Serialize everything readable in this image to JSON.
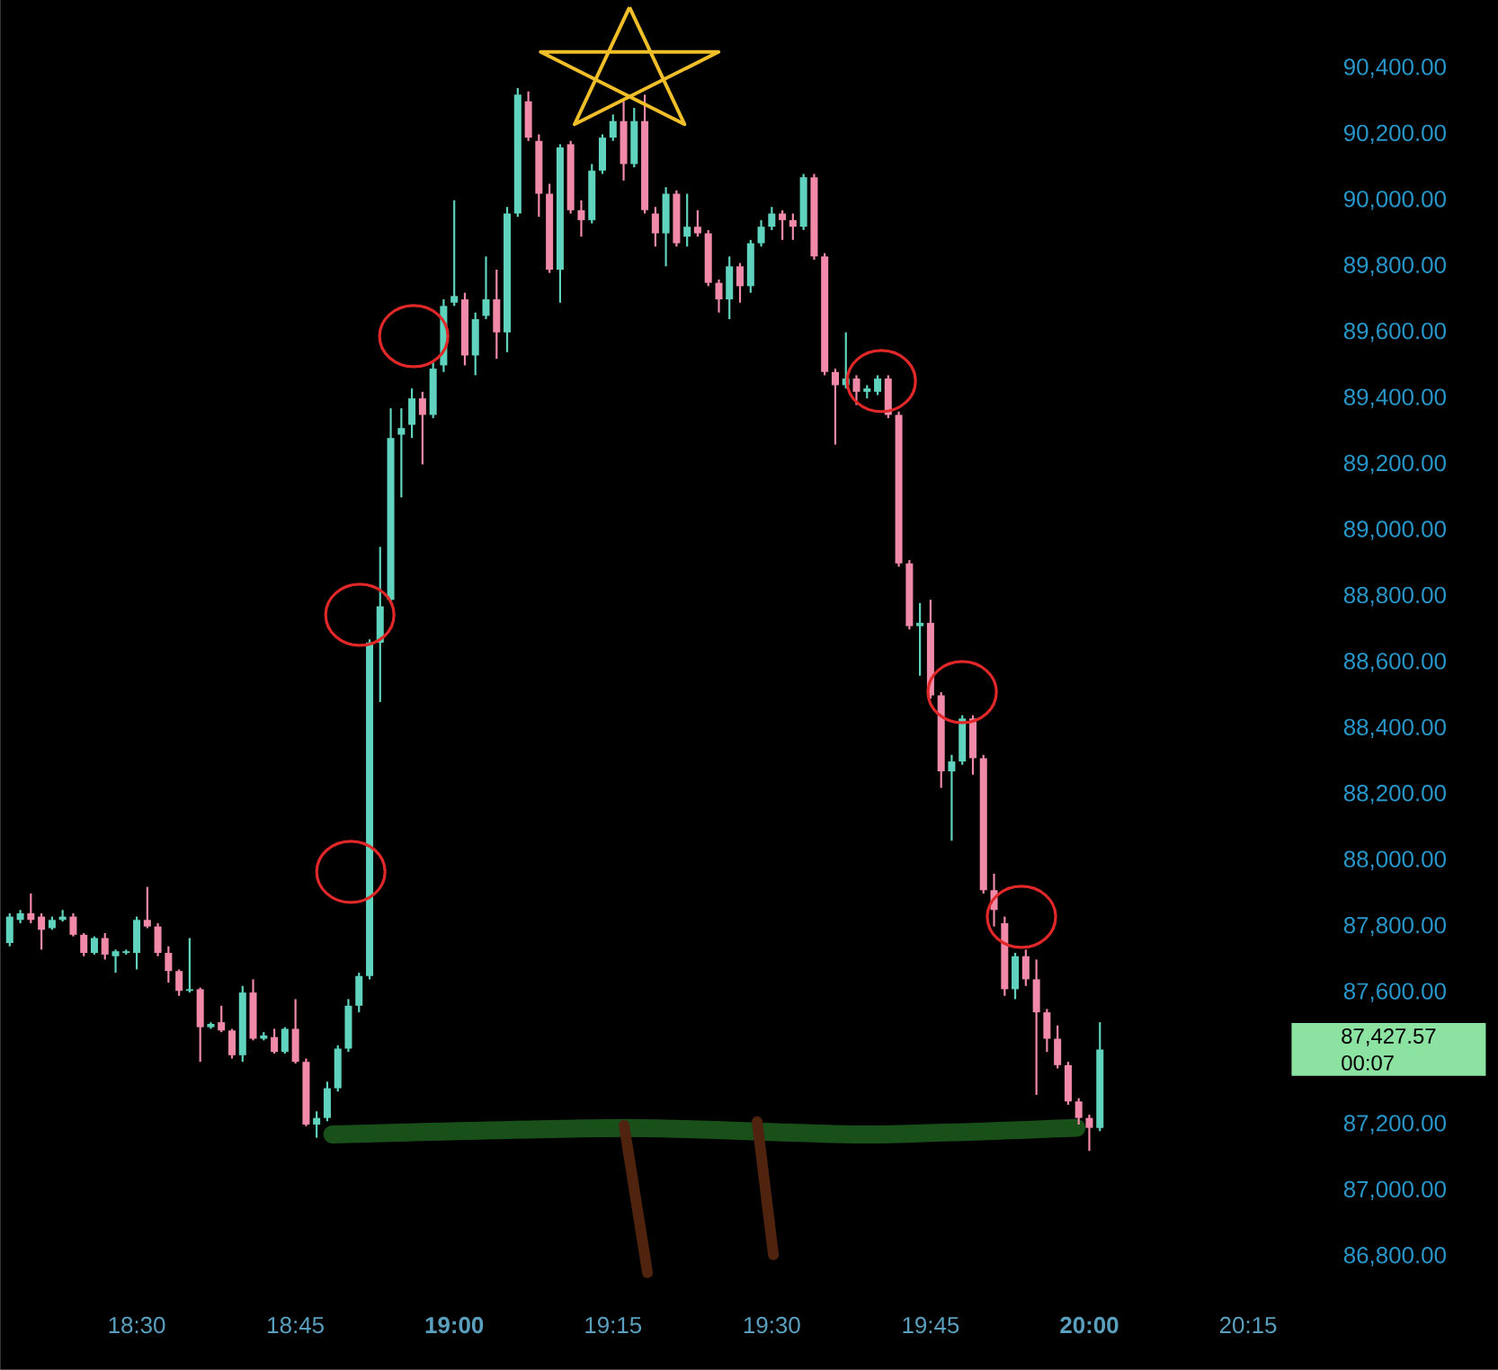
{
  "chart_data": {
    "type": "candlestick",
    "x": [
      18.3,
      18.3167,
      18.3333,
      18.35,
      18.3667,
      18.3833,
      18.4,
      18.4167,
      18.4333,
      18.45,
      18.4667,
      18.4833,
      18.5,
      18.5167,
      18.5333,
      18.55,
      18.5667,
      18.5833,
      18.6,
      18.6167,
      18.6333,
      18.65,
      18.6667,
      18.6833,
      18.7,
      18.7167,
      18.7333,
      18.75,
      18.7667,
      18.7833,
      18.8,
      18.8167,
      18.8333,
      18.85,
      18.8667,
      18.8833,
      18.9,
      18.9167,
      18.9333,
      18.95,
      18.9667,
      18.9833,
      19.0,
      19.0167,
      19.0333,
      19.05,
      19.0667,
      19.0833,
      19.1,
      19.1167,
      19.1333,
      19.15,
      19.1667,
      19.1833,
      19.2,
      19.2167,
      19.2333,
      19.25,
      19.2667,
      19.2833,
      19.3,
      19.3167,
      19.3333,
      19.35,
      19.3667,
      19.3833,
      19.4,
      19.4167,
      19.4333,
      19.45,
      19.4667,
      19.4833,
      19.5,
      19.5167,
      19.5333,
      19.55,
      19.5667,
      19.5833,
      19.6,
      19.6167,
      19.6333,
      19.65,
      19.6667,
      19.6833,
      19.7,
      19.7167,
      19.7333,
      19.75,
      19.7667,
      19.7833,
      19.8,
      19.8167,
      19.8333,
      19.85,
      19.8667,
      19.8833,
      19.9,
      19.9167,
      19.9333,
      19.95,
      19.9667,
      19.9833,
      20.0,
      20.0167
    ],
    "ohlc": [
      [
        87750,
        87840,
        87740,
        87830
      ],
      [
        87820,
        87850,
        87810,
        87840
      ],
      [
        87840,
        87900,
        87810,
        87820
      ],
      [
        87830,
        87840,
        87730,
        87790
      ],
      [
        87795,
        87830,
        87790,
        87820
      ],
      [
        87820,
        87850,
        87815,
        87830
      ],
      [
        87830,
        87840,
        87770,
        87775
      ],
      [
        87775,
        87780,
        87710,
        87720
      ],
      [
        87720,
        87770,
        87715,
        87765
      ],
      [
        87765,
        87780,
        87700,
        87715
      ],
      [
        87710,
        87730,
        87660,
        87725
      ],
      [
        87720,
        87730,
        87715,
        87725
      ],
      [
        87720,
        87830,
        87670,
        87820
      ],
      [
        87820,
        87920,
        87795,
        87800
      ],
      [
        87800,
        87810,
        87710,
        87720
      ],
      [
        87720,
        87740,
        87630,
        87665
      ],
      [
        87665,
        87670,
        87590,
        87605
      ],
      [
        87605,
        87765,
        87600,
        87610
      ],
      [
        87610,
        87615,
        87390,
        87495
      ],
      [
        87495,
        87510,
        87490,
        87505
      ],
      [
        87510,
        87560,
        87480,
        87485
      ],
      [
        87485,
        87490,
        87400,
        87410
      ],
      [
        87410,
        87620,
        87390,
        87600
      ],
      [
        87600,
        87640,
        87455,
        87460
      ],
      [
        87460,
        87480,
        87455,
        87470
      ],
      [
        87465,
        87490,
        87415,
        87420
      ],
      [
        87420,
        87495,
        87415,
        87490
      ],
      [
        87490,
        87580,
        87385,
        87390
      ],
      [
        87390,
        87400,
        87195,
        87200
      ],
      [
        87200,
        87240,
        87160,
        87220
      ],
      [
        87220,
        87330,
        87210,
        87310
      ],
      [
        87310,
        87440,
        87300,
        87430
      ],
      [
        87430,
        87580,
        87420,
        87560
      ],
      [
        87560,
        87660,
        87540,
        87650
      ],
      [
        87650,
        88670,
        87640,
        88660
      ],
      [
        88660,
        88950,
        88480,
        88770
      ],
      [
        88790,
        89370,
        88780,
        89280
      ],
      [
        89290,
        89370,
        89100,
        89310
      ],
      [
        89320,
        89430,
        89280,
        89400
      ],
      [
        89400,
        89420,
        89200,
        89350
      ],
      [
        89350,
        89510,
        89340,
        89490
      ],
      [
        89500,
        89700,
        89480,
        89680
      ],
      [
        89690,
        90000,
        89680,
        89710
      ],
      [
        89700,
        89720,
        89500,
        89530
      ],
      [
        89530,
        89660,
        89470,
        89640
      ],
      [
        89650,
        89830,
        89640,
        89700
      ],
      [
        89700,
        89790,
        89520,
        89600
      ],
      [
        89600,
        89980,
        89540,
        89960
      ],
      [
        89960,
        90340,
        89950,
        90320
      ],
      [
        90300,
        90330,
        90180,
        90190
      ],
      [
        90180,
        90200,
        89950,
        90020
      ],
      [
        90020,
        90050,
        89780,
        89790
      ],
      [
        89790,
        90170,
        89690,
        90160
      ],
      [
        90170,
        90180,
        89960,
        89970
      ],
      [
        89970,
        90000,
        89890,
        89940
      ],
      [
        89940,
        90110,
        89930,
        90090
      ],
      [
        90090,
        90200,
        90080,
        90190
      ],
      [
        90190,
        90260,
        90180,
        90240
      ],
      [
        90240,
        90300,
        90060,
        90110
      ],
      [
        90110,
        90280,
        90100,
        90240
      ],
      [
        90240,
        90320,
        89960,
        89970
      ],
      [
        89960,
        89980,
        89860,
        89900
      ],
      [
        89900,
        90040,
        89800,
        90020
      ],
      [
        90020,
        90030,
        89860,
        89870
      ],
      [
        89890,
        90020,
        89860,
        89920
      ],
      [
        89920,
        89970,
        89890,
        89900
      ],
      [
        89900,
        89910,
        89740,
        89750
      ],
      [
        89750,
        89760,
        89660,
        89700
      ],
      [
        89700,
        89830,
        89640,
        89800
      ],
      [
        89800,
        89810,
        89690,
        89740
      ],
      [
        89740,
        89880,
        89720,
        89870
      ],
      [
        89870,
        89940,
        89860,
        89920
      ],
      [
        89920,
        89980,
        89910,
        89960
      ],
      [
        89960,
        89970,
        89880,
        89940
      ],
      [
        89940,
        89960,
        89880,
        89920
      ],
      [
        89920,
        90080,
        89910,
        90070
      ],
      [
        90070,
        90080,
        89820,
        89830
      ],
      [
        89830,
        89840,
        89470,
        89480
      ],
      [
        89480,
        89490,
        89260,
        89440
      ],
      [
        89440,
        89600,
        89430,
        89460
      ],
      [
        89460,
        89470,
        89380,
        89420
      ],
      [
        89420,
        89440,
        89400,
        89430
      ],
      [
        89420,
        89470,
        89410,
        89460
      ],
      [
        89460,
        89470,
        89340,
        89350
      ],
      [
        89350,
        89360,
        88890,
        88900
      ],
      [
        88900,
        88910,
        88700,
        88710
      ],
      [
        88710,
        88780,
        88560,
        88720
      ],
      [
        88720,
        88790,
        88490,
        88500
      ],
      [
        88500,
        88510,
        88220,
        88270
      ],
      [
        88270,
        88320,
        88060,
        88300
      ],
      [
        88300,
        88440,
        88290,
        88430
      ],
      [
        88430,
        88440,
        88260,
        88310
      ],
      [
        88310,
        88320,
        87900,
        87910
      ],
      [
        87910,
        87960,
        87800,
        87850
      ],
      [
        87810,
        87830,
        87590,
        87610
      ],
      [
        87610,
        87720,
        87580,
        87710
      ],
      [
        87710,
        87730,
        87620,
        87640
      ],
      [
        87640,
        87700,
        87290,
        87540
      ],
      [
        87540,
        87550,
        87420,
        87460
      ],
      [
        87460,
        87500,
        87370,
        87380
      ],
      [
        87380,
        87390,
        87260,
        87270
      ],
      [
        87270,
        87280,
        87200,
        87220
      ],
      [
        87220,
        87230,
        87120,
        87190
      ],
      [
        87190,
        87510,
        87180,
        87427.57
      ]
    ],
    "colors": [
      "#5fd3bd",
      "#5fd3bd",
      "#f08aa8",
      "#f08aa8",
      "#5fd3bd",
      "#5fd3bd",
      "#f08aa8",
      "#f08aa8",
      "#5fd3bd",
      "#f08aa8",
      "#5fd3bd",
      "#5fd3bd",
      "#5fd3bd",
      "#f08aa8",
      "#f08aa8",
      "#f08aa8",
      "#f08aa8",
      "#5fd3bd",
      "#f08aa8",
      "#5fd3bd",
      "#f08aa8",
      "#f08aa8",
      "#5fd3bd",
      "#f08aa8",
      "#5fd3bd",
      "#f08aa8",
      "#5fd3bd",
      "#f08aa8",
      "#f08aa8",
      "#5fd3bd",
      "#5fd3bd",
      "#5fd3bd",
      "#5fd3bd",
      "#5fd3bd",
      "#5fd3bd",
      "#5fd3bd",
      "#5fd3bd",
      "#5fd3bd",
      "#5fd3bd",
      "#f08aa8",
      "#5fd3bd",
      "#5fd3bd",
      "#5fd3bd",
      "#f08aa8",
      "#5fd3bd",
      "#5fd3bd",
      "#f08aa8",
      "#5fd3bd",
      "#5fd3bd",
      "#f08aa8",
      "#f08aa8",
      "#f08aa8",
      "#5fd3bd",
      "#f08aa8",
      "#f08aa8",
      "#5fd3bd",
      "#5fd3bd",
      "#5fd3bd",
      "#f08aa8",
      "#5fd3bd",
      "#f08aa8",
      "#f08aa8",
      "#5fd3bd",
      "#f08aa8",
      "#5fd3bd",
      "#f08aa8",
      "#f08aa8",
      "#f08aa8",
      "#5fd3bd",
      "#f08aa8",
      "#5fd3bd",
      "#5fd3bd",
      "#5fd3bd",
      "#f08aa8",
      "#f08aa8",
      "#5fd3bd",
      "#f08aa8",
      "#f08aa8",
      "#f08aa8",
      "#5fd3bd",
      "#f08aa8",
      "#5fd3bd",
      "#5fd3bd",
      "#f08aa8",
      "#f08aa8",
      "#f08aa8",
      "#5fd3bd",
      "#f08aa8",
      "#f08aa8",
      "#5fd3bd",
      "#5fd3bd",
      "#f08aa8",
      "#f08aa8",
      "#f08aa8",
      "#f08aa8",
      "#5fd3bd",
      "#f08aa8",
      "#f08aa8",
      "#f08aa8",
      "#f08aa8",
      "#f08aa8",
      "#f08aa8",
      "#f08aa8",
      "#5fd3bd"
    ],
    "series": [
      {
        "type": "line",
        "color": "#195019",
        "x": [
          18.808,
          19.27,
          19.64,
          19.98
        ],
        "values": [
          87170,
          87190,
          87170,
          87190
        ]
      }
    ],
    "xlim": [
      18.285,
      20.25
    ],
    "xticks": [
      {
        "value": 18.5,
        "label": "18:30"
      },
      {
        "value": 18.75,
        "label": "18:45"
      },
      {
        "value": 19,
        "label": "**19:00**"
      },
      {
        "value": 19.25,
        "label": "19:15"
      },
      {
        "value": 19.5,
        "label": "19:30"
      },
      {
        "value": 19.75,
        "label": "19:45"
      },
      {
        "value": 20,
        "label": "**20:00**"
      },
      {
        "value": 20.25,
        "label": "20:15"
      }
    ],
    "ylim": [
      86800,
      90400
    ],
    "yticks": [
      {
        "value": 86800,
        "label": "86,800.00"
      },
      {
        "value": 87000,
        "label": "87,000.00"
      },
      {
        "value": 87200,
        "label": "87,200.00"
      },
      {
        "value": 87600,
        "label": "87,600.00"
      },
      {
        "value": 87800,
        "label": "87,800.00"
      },
      {
        "value": 88000,
        "label": "88,000.00"
      },
      {
        "value": 88200,
        "label": "88,200.00"
      },
      {
        "value": 88400,
        "label": "88,400.00"
      },
      {
        "value": 88600,
        "label": "88,600.00"
      },
      {
        "value": 88800,
        "label": "88,800.00"
      },
      {
        "value": 89000,
        "label": "89,000.00"
      },
      {
        "value": 89200,
        "label": "89,200.00"
      },
      {
        "value": 89400,
        "label": "89,400.00"
      },
      {
        "value": 89600,
        "label": "89,600.00"
      },
      {
        "value": 89800,
        "label": "89,800.00"
      },
      {
        "value": 90000,
        "label": "90,000.00"
      },
      {
        "value": 90200,
        "label": "90,200.00"
      },
      {
        "value": 90400,
        "label": "90,400.00"
      }
    ],
    "annotations": [
      "87,427.57",
      "00:07"
    ]
  }
}
